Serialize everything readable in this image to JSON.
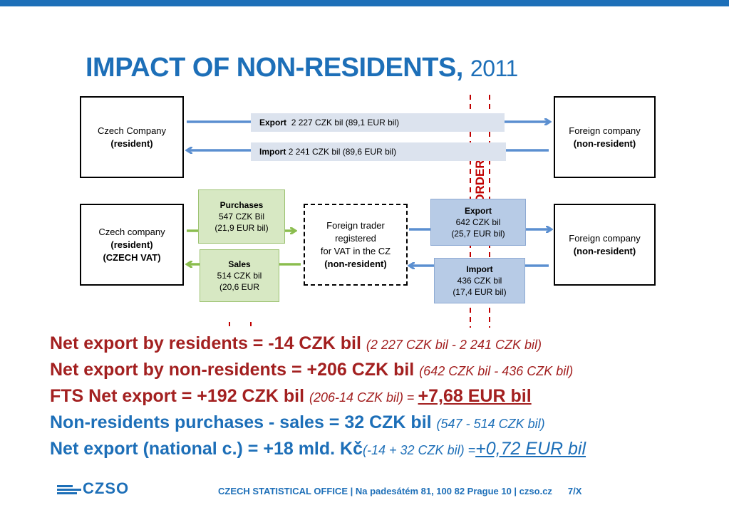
{
  "title": {
    "main": "IMPACT OF NON-RESIDENTS,",
    "year": "2011"
  },
  "border_label": "BORDER",
  "top_row": {
    "left_box": {
      "line1": "Czech Company",
      "line2": "(resident)"
    },
    "right_box": {
      "line1": "Foreign company",
      "line2": "(non-resident)"
    },
    "export_flow": {
      "label": "Export",
      "value": "2 227 CZK bil (89,1 EUR bil)"
    },
    "import_flow": {
      "label": "Import",
      "value": "2 241 CZK bil (89,6 EUR bil)"
    }
  },
  "bottom_row": {
    "left_box": {
      "line1": "Czech company",
      "line2": "(resident)",
      "line3": "(CZECH VAT)"
    },
    "middle_box": {
      "line1": "Foreign trader",
      "line2": "registered",
      "line3": "for VAT in the CZ",
      "line4": "(non-resident)"
    },
    "right_box": {
      "line1": "Foreign company",
      "line2": "(non-resident)"
    },
    "purchases": {
      "label": "Purchases",
      "value1": "547 CZK Bil",
      "value2": "(21,9 EUR bil)"
    },
    "sales": {
      "label": "Sales",
      "value1": "514 CZK bil",
      "value2": "(20,6 EUR"
    },
    "export": {
      "label": "Export",
      "value1": "642 CZK bil",
      "value2": "(25,7 EUR bil)"
    },
    "import": {
      "label": "Import",
      "value1": "436 CZK bil",
      "value2": "(17,4 EUR bil)"
    }
  },
  "statements": [
    {
      "main": "Net export by residents = -14 CZK bil ",
      "note": "(2 227 CZK bil - 2 241 CZK bil)"
    },
    {
      "main": "Net export by non-residents = +206 CZK bil ",
      "note": "(642 CZK bil - 436 CZK bil)"
    },
    {
      "main": "FTS Net export = +192 CZK bil ",
      "note": "(206-14 CZK bil)",
      "eq": " = ",
      "result": "+7,68 EUR bil"
    },
    {
      "main": "Non-residents purchases - sales = 32 CZK bil ",
      "note": "(547 - 514 CZK bil)"
    },
    {
      "main": "Net export (national c.) = +18 mld. Kč",
      "note": "(-14 + 32 CZK bil)",
      "eq": " =",
      "result": "+0,72 EUR bil"
    }
  ],
  "footer": {
    "logo": "CZSO",
    "text": "CZECH STATISTICAL OFFICE  |  Na padesátém 81, 100 82 Prague 10  |  czso.cz",
    "page": "7/X"
  },
  "colors": {
    "brand_blue": "#1d6fb8",
    "red": "#a32020",
    "green_box": "#d7e8c3",
    "blue_box": "#b7cbe6",
    "arrow_blue": "#5b8fd0",
    "arrow_green": "#8bbd4f"
  }
}
